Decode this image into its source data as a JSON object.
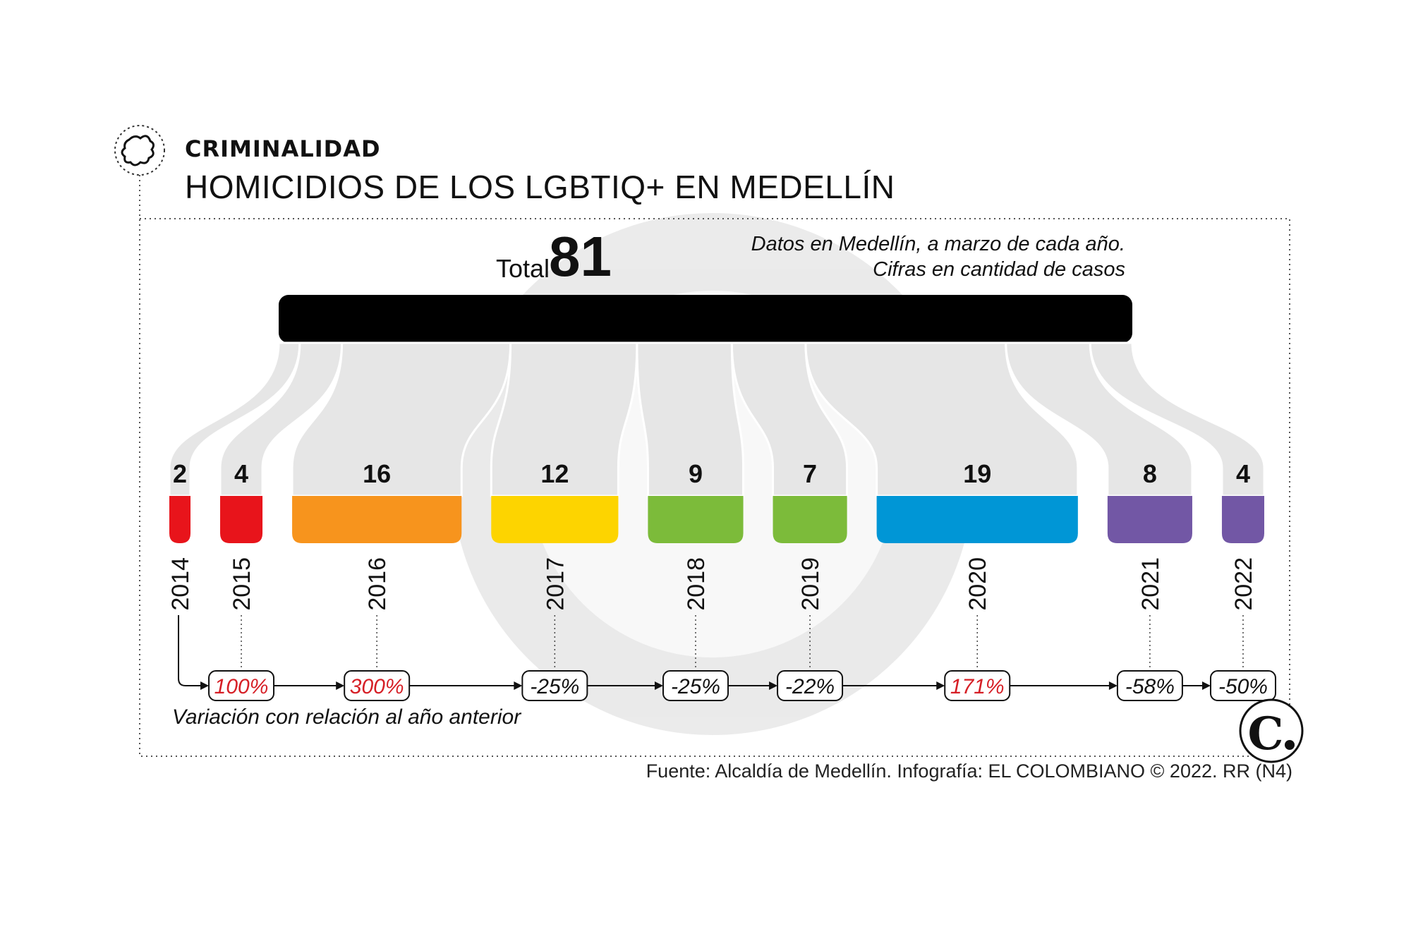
{
  "header": {
    "kicker": "CRIMINALIDAD",
    "title": "HOMICIDIOS DE LOS LGBTIQ+ EN MEDELLÍN",
    "icon": "map-region-icon"
  },
  "notes": {
    "line1": "Datos en Medellín, a marzo de cada año.",
    "line2": "Cifras en cantidad de casos"
  },
  "total": {
    "label": "Total",
    "value": "81"
  },
  "variation_label": "Variación con relación al año anterior",
  "source": "Fuente: Alcaldía de Medellín. Infografía: EL COLOMBIANO © 2022. RR (N4)",
  "logo": "El Colombiano logo",
  "chart_data": {
    "type": "bar",
    "title": "HOMICIDIOS DE LOS LGBTIQ+ EN MEDELLÍN",
    "unit": "casos",
    "total": 81,
    "categories": [
      "2014",
      "2015",
      "2016",
      "2017",
      "2018",
      "2019",
      "2020",
      "2021",
      "2022"
    ],
    "values": [
      2,
      4,
      16,
      12,
      9,
      7,
      19,
      8,
      4
    ],
    "colors": [
      "#e8141b",
      "#e8141b",
      "#f7941d",
      "#fdd400",
      "#7cbb3a",
      "#7cbb3a",
      "#0096d6",
      "#7257a5",
      "#7257a5"
    ],
    "variation": [
      null,
      "100%",
      "300%",
      "-25%",
      "-25%",
      "-22%",
      "171%",
      "-58%",
      "-50%"
    ],
    "variation_colors": {
      "positive": "#d61f26",
      "negative": "#111111"
    }
  }
}
